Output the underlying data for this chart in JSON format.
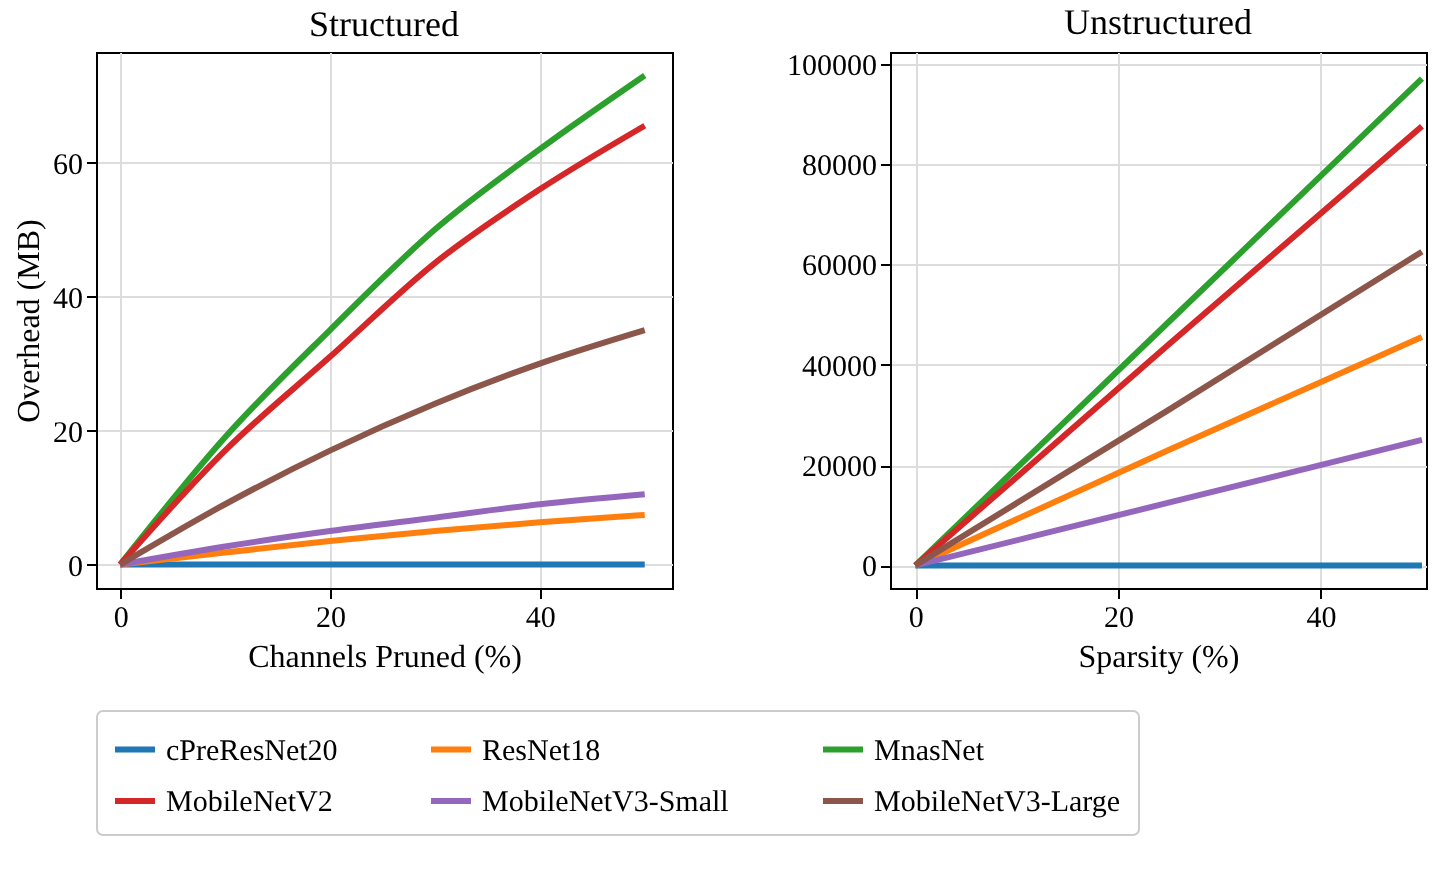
{
  "chart_data": [
    {
      "type": "line",
      "title": "Structured",
      "xlabel": "Channels Pruned (%)",
      "ylabel": "Overhead (MB)",
      "x": [
        0,
        10,
        20,
        30,
        40,
        50
      ],
      "xlim": [
        -2.3,
        52.6
      ],
      "ylim": [
        -3.5,
        76.5
      ],
      "xticks": [
        0,
        20,
        40
      ],
      "yticks": [
        0,
        20,
        40,
        60
      ],
      "grid": true,
      "legend": "bottom",
      "marker": "none",
      "line_style": "solid",
      "series": [
        {
          "name": "cPreResNet20",
          "color": "#1f77b4",
          "values": [
            0,
            0,
            0,
            0,
            0,
            0
          ]
        },
        {
          "name": "ResNet18",
          "color": "#ff7f0e",
          "values": [
            0,
            1.8,
            3.5,
            5,
            6.3,
            7.4
          ]
        },
        {
          "name": "MnasNet",
          "color": "#2ca02c",
          "values": [
            0,
            19,
            35,
            50,
            62,
            73
          ]
        },
        {
          "name": "MobileNetV2",
          "color": "#d62728",
          "values": [
            0,
            17,
            31,
            45,
            56,
            65.5
          ]
        },
        {
          "name": "MobileNetV3-Small",
          "color": "#9467bd",
          "values": [
            0,
            2.7,
            5,
            7,
            9,
            10.5
          ]
        },
        {
          "name": "MobileNetV3-Large",
          "color": "#8c564b",
          "values": [
            0,
            9,
            17,
            24,
            30,
            35
          ]
        }
      ]
    },
    {
      "type": "line",
      "title": "Unstructured",
      "xlabel": "Sparsity (%)",
      "x": [
        0,
        25,
        50
      ],
      "xlim": [
        -2.5,
        50.4
      ],
      "ylim": [
        -4500,
        102300
      ],
      "xticks": [
        0,
        20,
        40
      ],
      "yticks": [
        0,
        20000,
        40000,
        60000,
        80000,
        100000
      ],
      "grid": true,
      "legend": "bottom",
      "marker": "none",
      "line_style": "solid",
      "series": [
        {
          "name": "cPreResNet20",
          "color": "#1f77b4",
          "values": [
            0,
            0,
            0
          ]
        },
        {
          "name": "ResNet18",
          "color": "#ff7f0e",
          "values": [
            0,
            23000,
            45500
          ]
        },
        {
          "name": "MnasNet",
          "color": "#2ca02c",
          "values": [
            0,
            48500,
            97000
          ]
        },
        {
          "name": "MobileNetV2",
          "color": "#d62728",
          "values": [
            0,
            44000,
            87500
          ]
        },
        {
          "name": "MobileNetV3-Small",
          "color": "#9467bd",
          "values": [
            0,
            12500,
            25000
          ]
        },
        {
          "name": "MobileNetV3-Large",
          "color": "#8c564b",
          "values": [
            0,
            31000,
            62500
          ]
        }
      ]
    }
  ]
}
